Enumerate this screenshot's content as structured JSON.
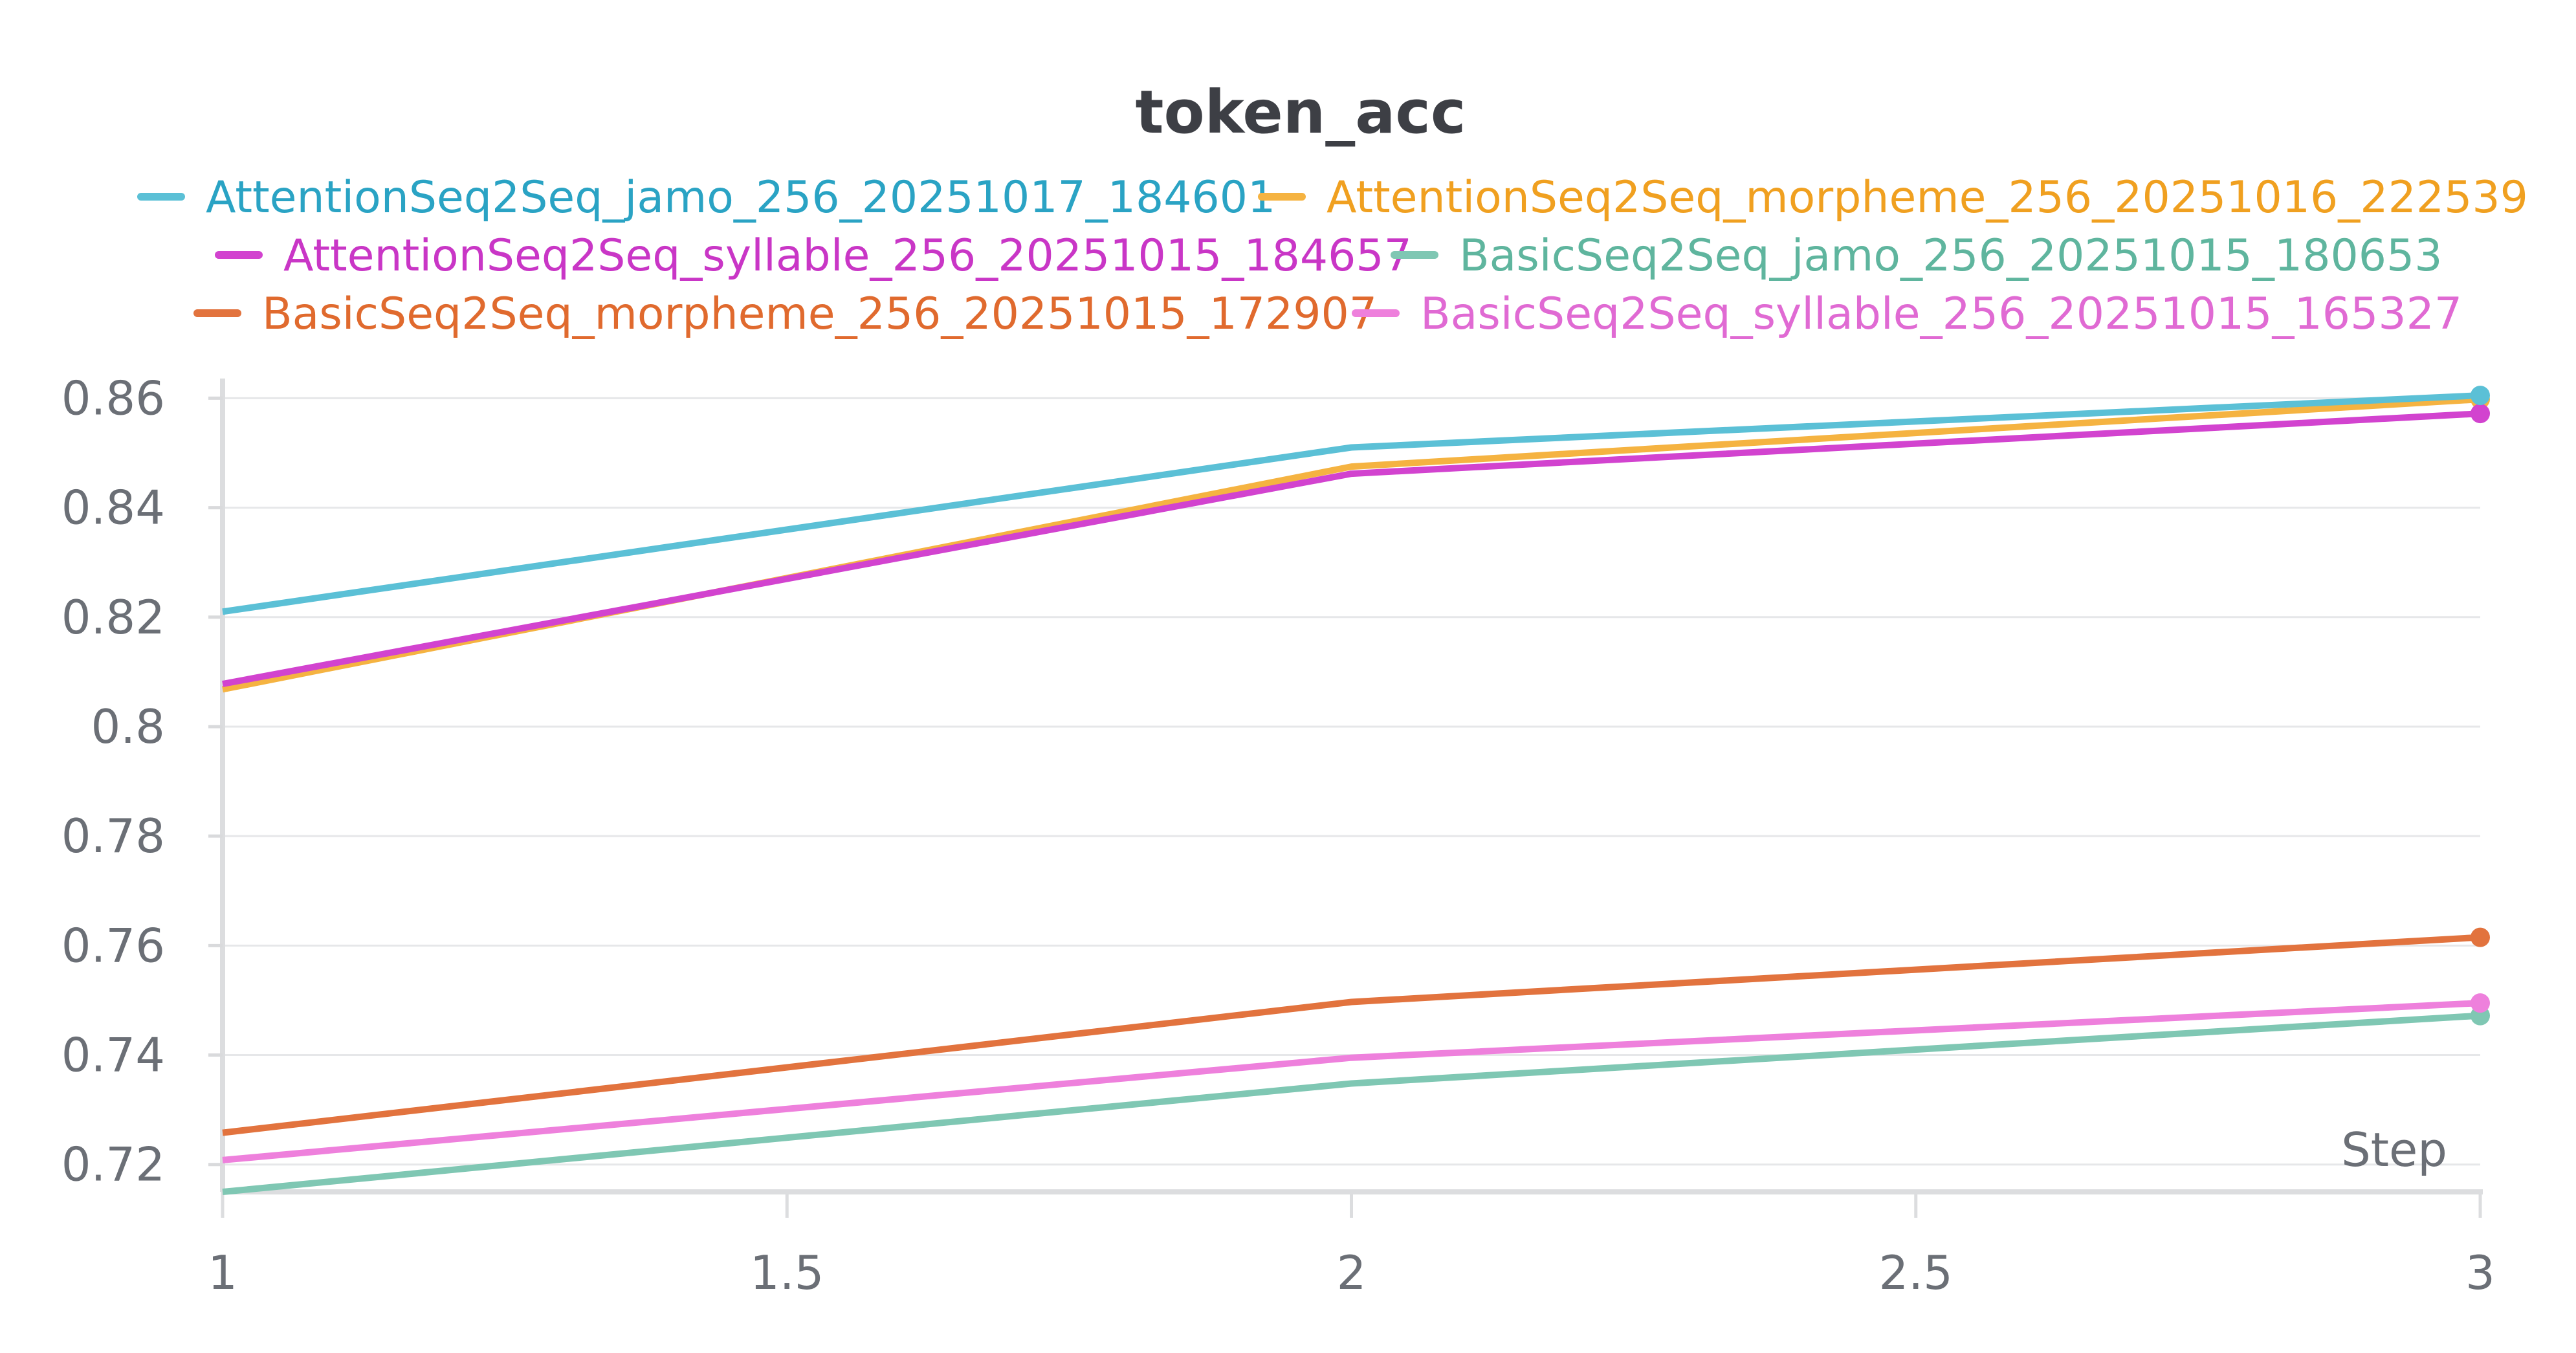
{
  "chart_data": {
    "type": "line",
    "title": "token_acc",
    "xlabel": "Step",
    "ylabel": "",
    "xlim": [
      1,
      3
    ],
    "ylim": [
      0.715,
      0.863
    ],
    "xticks": [
      "1",
      "1.5",
      "2",
      "2.5",
      "3"
    ],
    "yticks": [
      "0.72",
      "0.74",
      "0.76",
      "0.78",
      "0.8",
      "0.82",
      "0.84",
      "0.86"
    ],
    "grid": true,
    "legend_position": "top",
    "x": [
      1,
      2,
      3
    ],
    "series": [
      {
        "name": "AttentionSeq2Seq_jamo_256_20251017_184601",
        "color": "#5bc0d6",
        "values": [
          0.821,
          0.851,
          0.8605
        ]
      },
      {
        "name": "AttentionSeq2Seq_morpheme_256_20251016_222539",
        "color": "#f5b341",
        "values": [
          0.8068,
          0.8475,
          0.8598
        ]
      },
      {
        "name": "AttentionSeq2Seq_syllable_256_20251015_184657",
        "color": "#d243cf",
        "values": [
          0.8078,
          0.8462,
          0.8572
        ]
      },
      {
        "name": "BasicSeq2Seq_jamo_256_20251015_180653",
        "color": "#7fc7b3",
        "values": [
          0.715,
          0.7348,
          0.7472
        ]
      },
      {
        "name": "BasicSeq2Seq_morpheme_256_20251015_172907",
        "color": "#e2733e",
        "values": [
          0.7258,
          0.7497,
          0.7615
        ]
      },
      {
        "name": "BasicSeq2Seq_syllable_256_20251015_165327",
        "color": "#ee80dc",
        "values": [
          0.7208,
          0.7395,
          0.7495
        ]
      }
    ],
    "legend_text_colors": [
      "#2aa3c4",
      "#f0a020",
      "#c936c6",
      "#5fb59e",
      "#e06a2e",
      "#e06ad3"
    ]
  }
}
